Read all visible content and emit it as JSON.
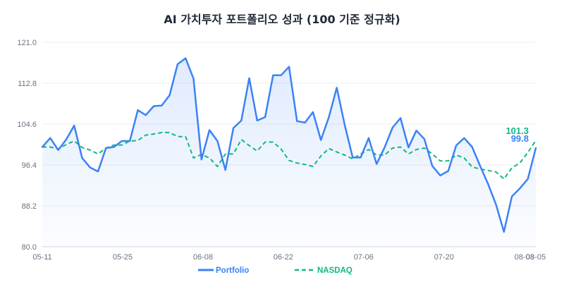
{
  "chart_data": {
    "type": "line",
    "title": "AI 가치투자 포트폴리오 성과 (100 기준 정규화)",
    "xlabel": "",
    "ylabel": "",
    "ylim": [
      80,
      121
    ],
    "yticks": [
      "80.0",
      "88.2",
      "96.4",
      "104.6",
      "112.8",
      "121.0"
    ],
    "xticks": [
      "05-11",
      "05-25",
      "06-08",
      "06-22",
      "07-06",
      "07-20",
      "08-03",
      "08-05"
    ],
    "x_axis_first_date": "05-11",
    "x_axis_last_date": "08-05",
    "grid": "horizontal",
    "legend_position": "bottom",
    "colors": {
      "portfolio": "#3b82f6",
      "nasdaq": "#10b981"
    },
    "end_labels": {
      "portfolio": "99.8",
      "nasdaq": "101.3"
    },
    "series": [
      {
        "name": "Portfolio",
        "style": "solid",
        "values": [
          100.0,
          101.8,
          99.4,
          101.5,
          104.3,
          97.8,
          95.9,
          95.1,
          99.8,
          100.0,
          101.2,
          101.2,
          107.4,
          106.4,
          108.2,
          108.3,
          110.4,
          116.6,
          117.8,
          113.7,
          97.5,
          103.4,
          101.2,
          95.4,
          103.8,
          105.3,
          113.8,
          105.3,
          106.0,
          114.4,
          114.4,
          116.1,
          105.2,
          104.9,
          107.0,
          101.4,
          106.0,
          111.9,
          104.4,
          97.9,
          97.9,
          101.8,
          96.6,
          99.9,
          103.9,
          105.8,
          99.9,
          103.3,
          101.6,
          96.2,
          94.3,
          95.2,
          100.3,
          101.8,
          100.0,
          96.2,
          92.6,
          88.5,
          83.0,
          90.1,
          91.7,
          93.6,
          99.8
        ]
      },
      {
        "name": "NASDAQ",
        "style": "dashed",
        "values": [
          100.0,
          100.0,
          99.6,
          100.5,
          101.2,
          99.9,
          99.4,
          98.6,
          99.8,
          100.4,
          100.4,
          101.2,
          101.3,
          102.4,
          102.6,
          102.9,
          102.9,
          102.1,
          102.1,
          97.8,
          98.5,
          97.8,
          96.1,
          98.6,
          98.6,
          101.5,
          100.3,
          99.2,
          101.0,
          101.0,
          99.6,
          97.3,
          96.8,
          96.5,
          96.1,
          98.2,
          99.7,
          99.0,
          98.4,
          97.6,
          98.6,
          99.5,
          98.4,
          98.4,
          99.8,
          100.0,
          98.6,
          99.5,
          99.8,
          98.6,
          97.2,
          97.2,
          98.4,
          97.8,
          96.0,
          95.6,
          95.3,
          95.0,
          93.6,
          95.8,
          96.8,
          98.9,
          101.3
        ]
      }
    ]
  }
}
